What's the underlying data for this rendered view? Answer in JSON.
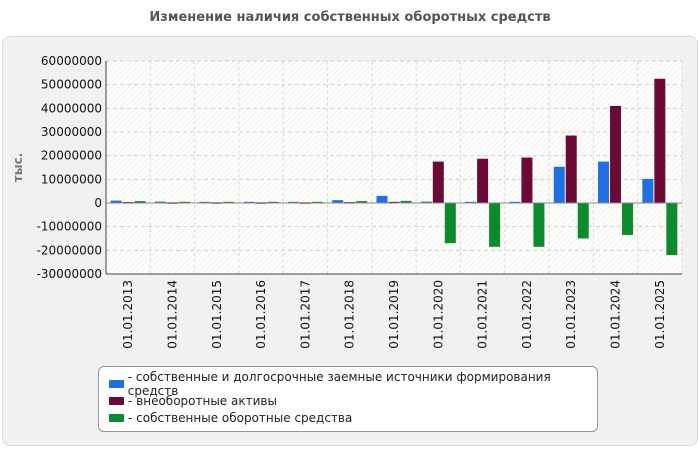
{
  "title": "Изменение наличия собственных оборотных средств",
  "chart_data": {
    "type": "bar",
    "title": "Изменение наличия собственных оборотных средств",
    "ylabel": "тыс.",
    "xlabel": "",
    "ylim": [
      -30000000,
      60000000
    ],
    "yticks": [
      60000000,
      50000000,
      40000000,
      30000000,
      20000000,
      10000000,
      0,
      -10000000,
      -20000000,
      -30000000
    ],
    "categories": [
      "01.01.2013",
      "01.01.2014",
      "01.01.2015",
      "01.01.2016",
      "01.01.2017",
      "01.01.2018",
      "01.01.2019",
      "01.01.2020",
      "01.01.2021",
      "01.01.2022",
      "01.01.2023",
      "01.01.2024",
      "01.01.2025"
    ],
    "series": [
      {
        "name": "собственные и долгосрочные заемные источники формирования средств",
        "color": "#1f6fe5",
        "values": [
          1000000,
          600000,
          500000,
          500000,
          500000,
          1200000,
          3000000,
          600000,
          500000,
          500000,
          15300000,
          17500000,
          10200000
        ]
      },
      {
        "name": "внеоборотные активы",
        "color": "#6b0a36",
        "values": [
          400000,
          300000,
          300000,
          300000,
          300000,
          400000,
          500000,
          17500000,
          18700000,
          19200000,
          28500000,
          41000000,
          52500000
        ]
      },
      {
        "name": "собственные оборотные средства",
        "color": "#0c8a2e",
        "values": [
          800000,
          500000,
          500000,
          500000,
          500000,
          800000,
          900000,
          -17000000,
          -18500000,
          -18500000,
          -15000000,
          -13500000,
          -22000000
        ]
      }
    ]
  }
}
